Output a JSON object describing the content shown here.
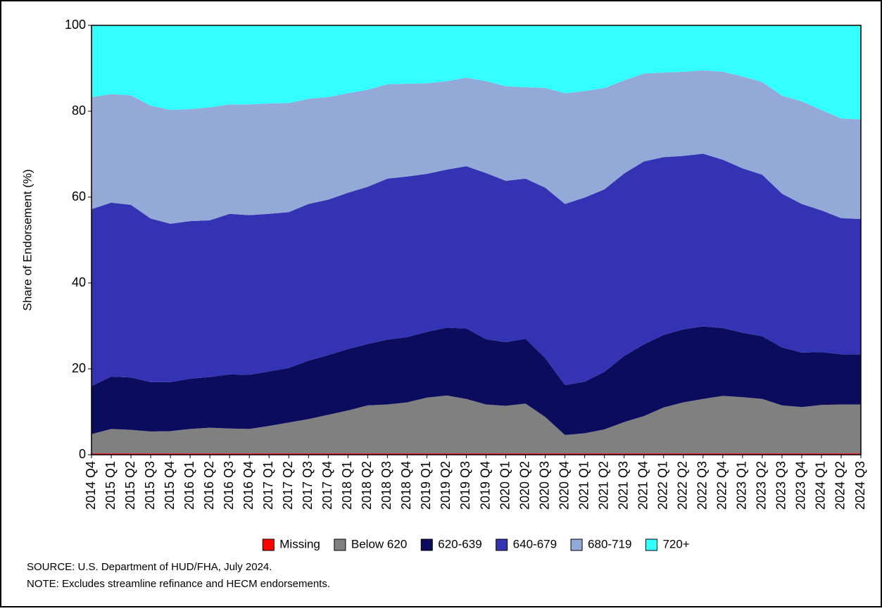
{
  "chart_data": {
    "type": "stacked_area",
    "y_label": "Share of Endorsement (%)",
    "categories": [
      "2014 Q4",
      "2015 Q1",
      "2015 Q2",
      "2015 Q3",
      "2015 Q4",
      "2016 Q1",
      "2016 Q2",
      "2016 Q3",
      "2016 Q4",
      "2017 Q1",
      "2017 Q2",
      "2017 Q3",
      "2017 Q4",
      "2018 Q1",
      "2018 Q2",
      "2018 Q3",
      "2018 Q4",
      "2019 Q1",
      "2019 Q2",
      "2019 Q3",
      "2019 Q4",
      "2020 Q1",
      "2020 Q2",
      "2020 Q3",
      "2020 Q4",
      "2021 Q1",
      "2021 Q2",
      "2021 Q3",
      "2021 Q4",
      "2022 Q1",
      "2022 Q2",
      "2022 Q3",
      "2022 Q4",
      "2023 Q1",
      "2023 Q2",
      "2023 Q3",
      "2023 Q4",
      "2024 Q1",
      "2024 Q2",
      "2024 Q3"
    ],
    "series": [
      {
        "name": "Missing",
        "color": "#ff0000",
        "values": [
          0.3,
          0.3,
          0.3,
          0.3,
          0.3,
          0.3,
          0.3,
          0.3,
          0.3,
          0.3,
          0.3,
          0.3,
          0.3,
          0.3,
          0.3,
          0.3,
          0.3,
          0.3,
          0.3,
          0.3,
          0.3,
          0.3,
          0.3,
          0.3,
          0.3,
          0.3,
          0.3,
          0.3,
          0.3,
          0.3,
          0.3,
          0.3,
          0.3,
          0.3,
          0.3,
          0.3,
          0.3,
          0.3,
          0.3,
          0.3
        ]
      },
      {
        "name": "Below 620",
        "color": "#808080",
        "values": [
          4.5,
          5.7,
          5.5,
          5.1,
          5.2,
          5.7,
          6.0,
          5.8,
          5.7,
          6.4,
          7.2,
          8.0,
          9.0,
          10.0,
          11.2,
          11.4,
          11.9,
          13.0,
          13.5,
          12.7,
          11.4,
          11.1,
          11.6,
          8.5,
          4.3,
          4.7,
          5.6,
          7.3,
          8.7,
          10.7,
          11.9,
          12.7,
          13.4,
          13.1,
          12.7,
          11.2,
          10.8,
          11.3,
          11.4,
          11.4
        ]
      },
      {
        "name": "620-639",
        "color": "#0c0c5e",
        "values": [
          11.2,
          12.2,
          12.2,
          11.5,
          11.4,
          11.7,
          11.8,
          12.6,
          12.6,
          12.7,
          12.7,
          13.6,
          13.9,
          14.3,
          14.3,
          15.1,
          15.2,
          15.3,
          15.8,
          16.4,
          15.2,
          14.8,
          15.1,
          13.7,
          11.6,
          12.0,
          13.4,
          15.4,
          16.7,
          16.9,
          17.0,
          16.9,
          15.8,
          15.0,
          14.6,
          13.5,
          12.7,
          12.3,
          11.7,
          11.7
        ]
      },
      {
        "name": "640-679",
        "color": "#3333b3",
        "values": [
          41.2,
          40.5,
          40.2,
          38.1,
          36.9,
          36.7,
          36.5,
          37.4,
          37.2,
          36.7,
          36.3,
          36.5,
          36.2,
          36.4,
          36.6,
          37.5,
          37.4,
          36.8,
          36.8,
          37.8,
          38.7,
          37.6,
          37.3,
          39.7,
          42.2,
          42.9,
          42.5,
          42.5,
          42.6,
          41.4,
          40.4,
          40.2,
          39.2,
          38.3,
          37.6,
          35.8,
          34.6,
          33.0,
          31.7,
          31.5
        ]
      },
      {
        "name": "680-719",
        "color": "#93a9d8",
        "values": [
          26.1,
          25.3,
          25.5,
          26.3,
          26.5,
          26.1,
          26.3,
          25.5,
          25.8,
          25.7,
          25.4,
          24.5,
          23.9,
          23.2,
          22.6,
          22.0,
          21.6,
          21.1,
          20.6,
          20.6,
          21.4,
          22.0,
          21.3,
          23.2,
          25.8,
          24.8,
          23.6,
          21.7,
          20.5,
          19.7,
          19.6,
          19.4,
          20.5,
          21.4,
          21.6,
          22.8,
          23.9,
          23.4,
          23.2,
          23.2
        ]
      },
      {
        "name": "720+",
        "color": "#33ffff",
        "values": [
          16.7,
          16.0,
          16.3,
          18.7,
          19.7,
          19.5,
          19.1,
          18.4,
          18.4,
          18.2,
          18.1,
          17.1,
          16.7,
          15.8,
          15.0,
          13.7,
          13.6,
          13.5,
          13.0,
          12.2,
          13.0,
          14.2,
          14.4,
          14.6,
          15.8,
          15.3,
          14.6,
          12.8,
          11.2,
          11.0,
          10.8,
          10.5,
          10.8,
          11.9,
          13.2,
          16.4,
          17.7,
          19.7,
          21.7,
          21.9
        ]
      }
    ],
    "ylim": [
      0,
      100
    ],
    "yticks": [
      0,
      20,
      40,
      60,
      80,
      100
    ],
    "legend": "bottom",
    "source": "SOURCE: U.S. Department of HUD/FHA, July 2024.",
    "note": "NOTE: Excludes streamline refinance and HECM endorsements."
  }
}
